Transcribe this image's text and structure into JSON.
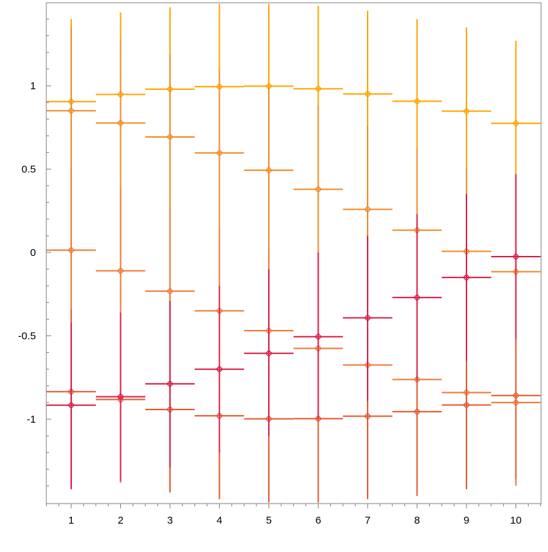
{
  "chart_data": {
    "type": "scatter",
    "title": "",
    "xlabel": "",
    "ylabel": "",
    "xlim": [
      0.5,
      10.5
    ],
    "ylim": [
      -1.5,
      1.5
    ],
    "x_ticks": [
      1,
      2,
      3,
      4,
      5,
      6,
      7,
      8,
      9,
      10
    ],
    "y_ticks": [
      1,
      0.5,
      0,
      -0.5,
      -1
    ],
    "y_tick_labels": [
      "1",
      "0.5",
      "0",
      "-0.5",
      "-1"
    ],
    "grid": false,
    "legend": "none",
    "x": [
      1,
      2,
      3,
      4,
      5,
      6,
      7,
      8,
      9,
      10
    ],
    "x_error": 0.5,
    "series": [
      {
        "color": "#FFA500",
        "y": [
          0.905,
          0.948,
          0.98,
          0.995,
          0.998,
          0.982,
          0.951,
          0.907,
          0.848,
          0.775
        ],
        "y_upper": [
          1.4,
          1.44,
          1.47,
          1.49,
          1.49,
          1.48,
          1.45,
          1.4,
          1.35,
          1.27
        ],
        "y_lower": [
          0.41,
          0.45,
          0.49,
          0.5,
          0.5,
          0.49,
          0.45,
          0.41,
          0.35,
          0.27
        ]
      },
      {
        "color": "#F08C28",
        "y": [
          0.85,
          0.777,
          0.693,
          0.597,
          0.493,
          0.379,
          0.259,
          0.134,
          0.007,
          -0.115
        ],
        "y_upper": [
          1.35,
          1.28,
          1.19,
          1.1,
          0.99,
          0.88,
          0.76,
          0.63,
          0.51,
          0.39
        ],
        "y_lower": [
          0.35,
          0.28,
          0.19,
          0.1,
          -0.01,
          -0.12,
          -0.24,
          -0.37,
          -0.49,
          -0.62
        ]
      },
      {
        "color": "#EE7A3A",
        "y": [
          0.014,
          -0.11,
          -0.232,
          -0.35,
          -0.469,
          -0.575,
          -0.675,
          -0.762,
          -0.84,
          -0.9
        ],
        "y_upper": [
          0.51,
          0.39,
          0.27,
          0.15,
          0.03,
          -0.08,
          -0.18,
          -0.26,
          -0.34,
          -0.4
        ],
        "y_lower": [
          -0.49,
          -0.61,
          -0.73,
          -0.85,
          -0.97,
          -1.08,
          -1.18,
          -1.26,
          -1.34,
          -1.4
        ]
      },
      {
        "color": "#E45A30",
        "y": [
          -0.835,
          -0.882,
          -0.942,
          -0.98,
          -0.998,
          -0.997,
          -0.982,
          -0.955,
          -0.915,
          -0.858
        ],
        "y_upper": [
          -0.34,
          -0.38,
          -0.44,
          -0.48,
          -0.5,
          -0.5,
          -0.48,
          -0.46,
          -0.42,
          -0.36
        ],
        "y_lower": [
          -1.34,
          -1.38,
          -1.44,
          -1.48,
          -1.5,
          -1.5,
          -1.48,
          -1.46,
          -1.42,
          -1.36
        ]
      },
      {
        "color": "#DA1E48",
        "y": [
          -0.916,
          -0.865,
          -0.788,
          -0.7,
          -0.605,
          -0.505,
          -0.392,
          -0.27,
          -0.15,
          -0.025
        ],
        "y_upper": [
          -0.42,
          -0.36,
          -0.29,
          -0.2,
          -0.1,
          0.0,
          0.1,
          0.23,
          0.35,
          0.47
        ],
        "y_lower": [
          -1.42,
          -1.37,
          -1.29,
          -1.2,
          -1.1,
          -1.0,
          -0.89,
          -0.77,
          -0.65,
          -0.52
        ]
      }
    ]
  }
}
